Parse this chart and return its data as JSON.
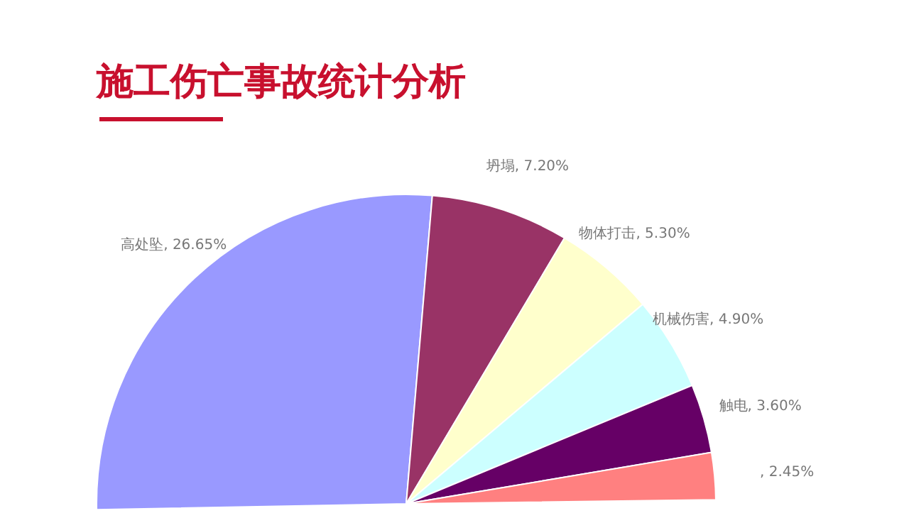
{
  "chart_data": {
    "type": "pie",
    "title": "施工伤亡事故统计分析",
    "categories": [
      "高处坠",
      "坍塌",
      "物体打击",
      "机械伤害",
      "触电",
      null
    ],
    "values": [
      26.65,
      7.2,
      5.3,
      4.9,
      3.6,
      2.45
    ],
    "value_labels": [
      ", 26.65%",
      ", 7.20%",
      ", 5.30%",
      ", 4.90%",
      ", 3.60%",
      ", 2.45%"
    ],
    "colors": [
      "#9999ff",
      "#993366",
      "#ffffcc",
      "#ccffff",
      "#660066",
      "#ff8080"
    ]
  }
}
